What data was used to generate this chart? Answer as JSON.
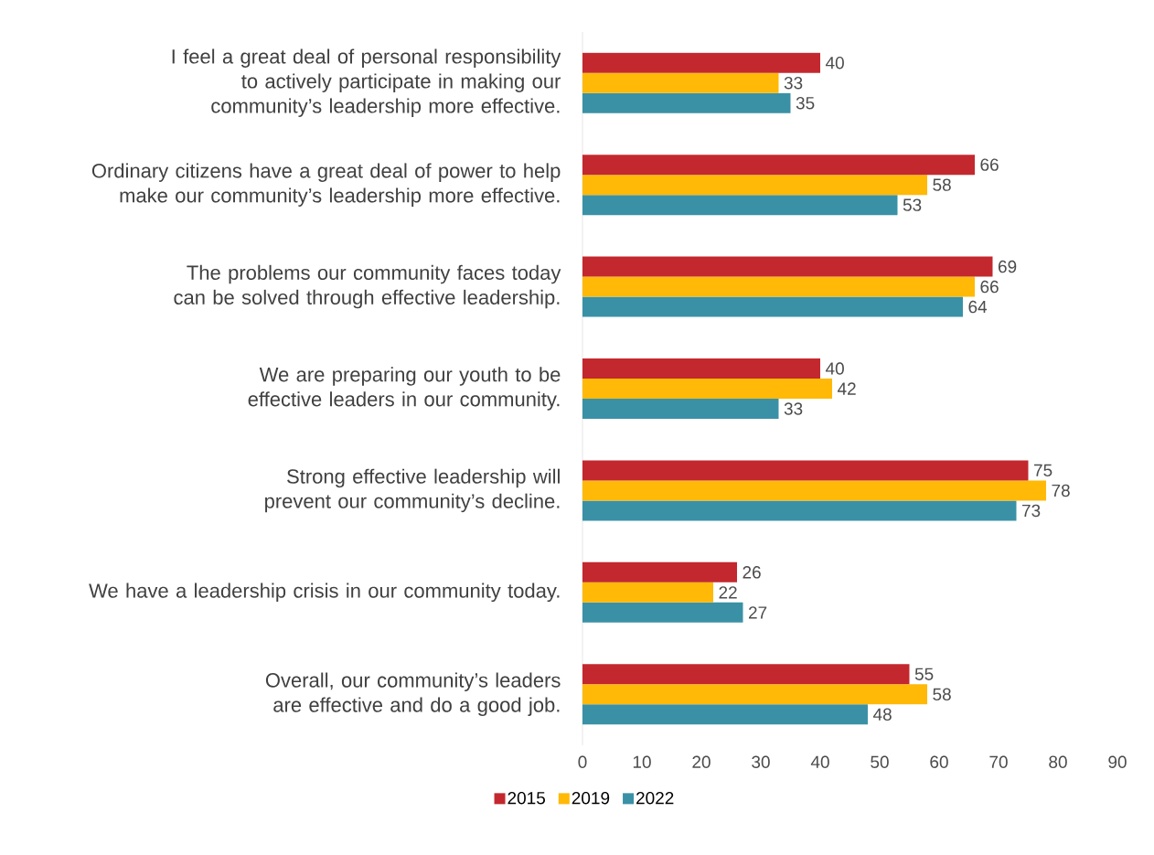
{
  "chart_data": {
    "type": "bar",
    "orientation": "horizontal",
    "categories": [
      "I feel a great deal of personal responsibility to actively participate in making our community’s leadership more effective.",
      "Ordinary citizens have a great deal of power to help make our community’s leadership more effective.",
      "The problems our community faces today can be solved through effective leadership.",
      "We are preparing our youth to be effective leaders in our community.",
      "Strong effective leadership will prevent our community’s decline.",
      "We have a leadership crisis in our community today.",
      "Overall, our community’s leaders are effective and do a good job."
    ],
    "series": [
      {
        "name": "2015",
        "color": "#c3282e",
        "values": [
          40,
          66,
          69,
          40,
          75,
          26,
          55
        ]
      },
      {
        "name": "2019",
        "color": "#ffb906",
        "values": [
          33,
          58,
          66,
          42,
          78,
          22,
          58
        ]
      },
      {
        "name": "2022",
        "color": "#3a91a6",
        "values": [
          35,
          53,
          64,
          33,
          73,
          27,
          48
        ]
      }
    ],
    "xlim": [
      0,
      90
    ],
    "xticks": [
      0,
      10,
      20,
      30,
      40,
      50,
      60,
      70,
      80,
      90
    ],
    "data_labels": true,
    "legend": "bottom",
    "grid": false
  }
}
